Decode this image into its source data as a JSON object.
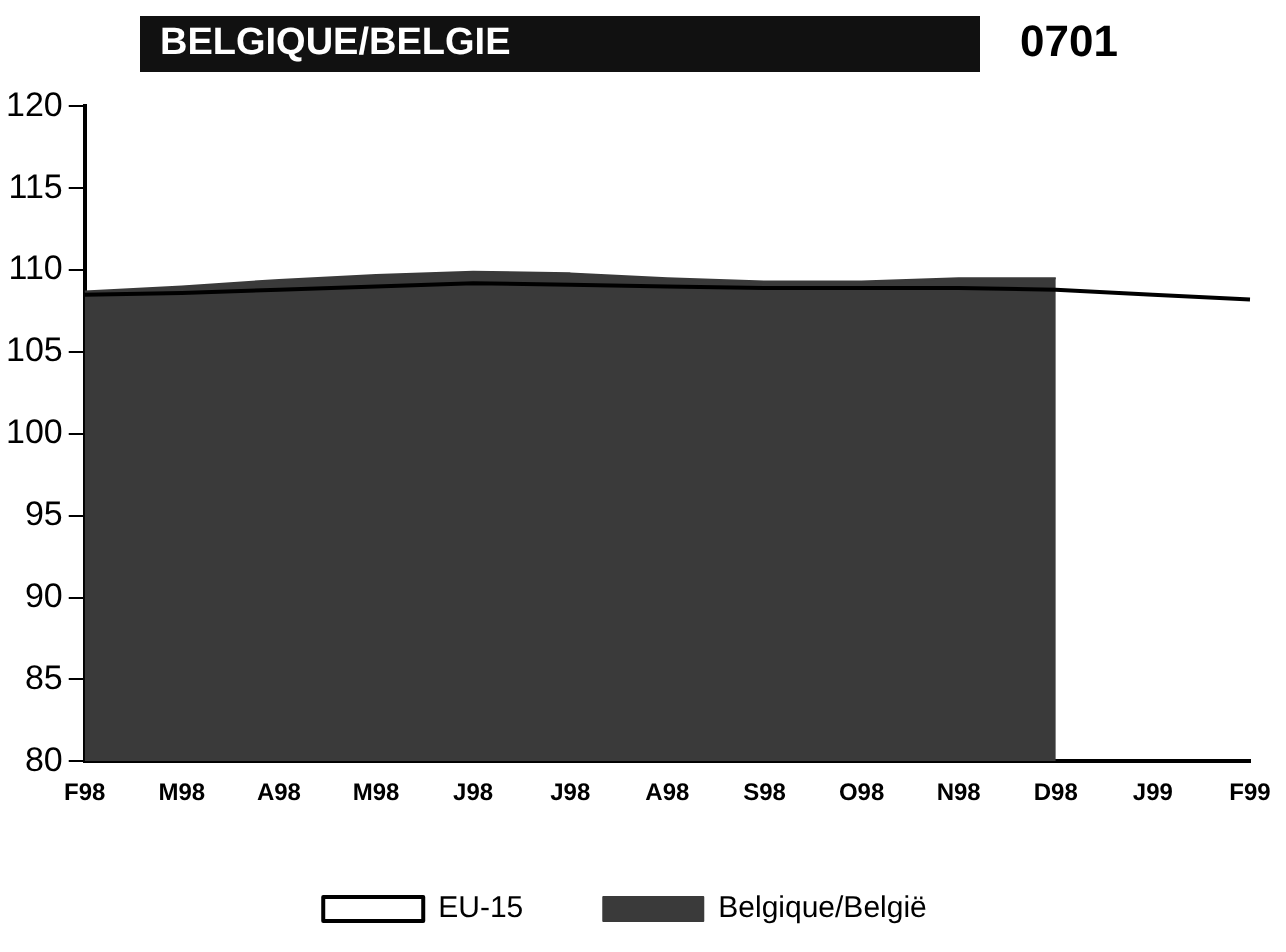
{
  "chart_data": {
    "type": "area",
    "title": "BELGIQUE/BELGIE",
    "annotations": [
      "0701"
    ],
    "categories": [
      "F98",
      "M98",
      "A98",
      "M98",
      "J98",
      "J98",
      "A98",
      "S98",
      "O98",
      "N98",
      "D98",
      "J99",
      "F99"
    ],
    "series": [
      {
        "name": "EU-15",
        "type": "line",
        "color": "#000000",
        "values": [
          108.5,
          108.6,
          108.8,
          109.0,
          109.2,
          109.1,
          109.0,
          108.9,
          108.9,
          108.9,
          108.8,
          108.5,
          108.2
        ]
      },
      {
        "name": "Belgique/België",
        "color": "#3a3a3a",
        "values": [
          108.7,
          109.0,
          109.4,
          109.7,
          109.9,
          109.8,
          109.5,
          109.3,
          109.3,
          109.5,
          109.5,
          null,
          null
        ]
      }
    ],
    "ylim": [
      80,
      120
    ],
    "yticks": [
      80,
      85,
      90,
      95,
      100,
      105,
      110,
      115,
      120
    ],
    "grid": false,
    "legend": "bottom",
    "marker": "none",
    "line_style": "solid"
  }
}
